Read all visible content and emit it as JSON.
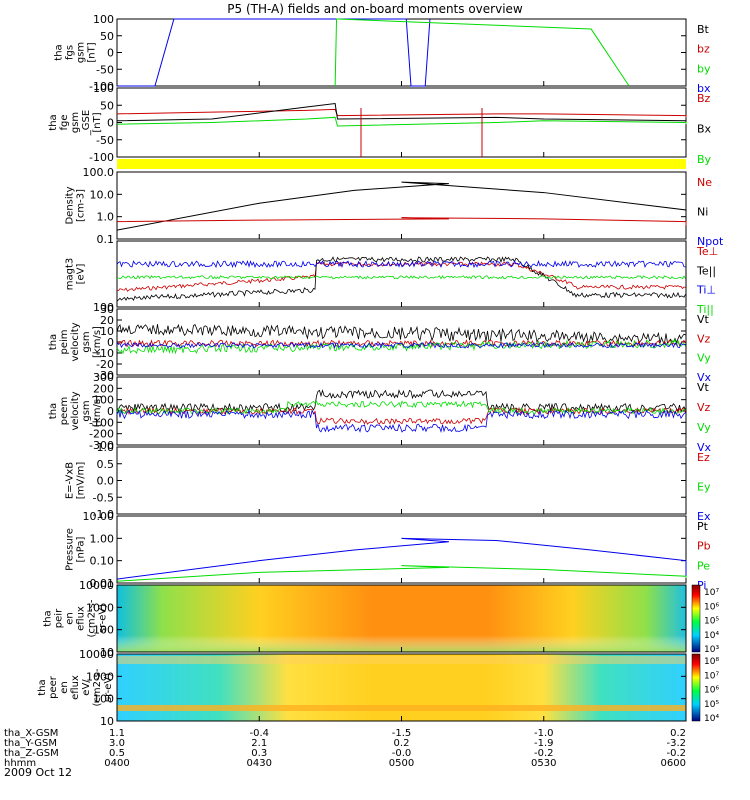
{
  "title": "P5 (TH-A) fields and on-board moments overview",
  "date": "2009 Oct 12",
  "colors": {
    "black": "#000000",
    "red": "#cc0000",
    "green": "#00dd00",
    "blue": "#0000ee",
    "yellow": "#ffff00"
  },
  "chart_data": [
    {
      "type": "line",
      "ylabel": [
        "tha",
        "fgs",
        "gsm",
        "[nT]"
      ],
      "ylim": [
        -100,
        100
      ],
      "yticks": [
        "100",
        "50",
        "0",
        "-50",
        "-100"
      ],
      "legend": [
        {
          "label": "Bt",
          "color": "black"
        },
        {
          "label": "bz",
          "color": "red"
        },
        {
          "label": "by",
          "color": "green"
        },
        {
          "label": "bx",
          "color": "blue"
        }
      ],
      "series": [
        {
          "name": "bx",
          "color": "blue",
          "x": [
            400,
            408,
            412,
            501,
            502,
            505,
            506
          ],
          "y": [
            -100,
            -100,
            100,
            100,
            -100,
            -100,
            100
          ]
        },
        {
          "name": "by",
          "color": "green",
          "x": [
            446,
            446.3,
            446.6,
            540,
            548
          ],
          "y": [
            -100,
            100,
            100,
            70,
            -100
          ]
        }
      ]
    },
    {
      "type": "line",
      "ylabel": [
        "tha",
        "fge",
        "gsm",
        "_GSE",
        "[nT]"
      ],
      "ylim": [
        -100,
        100
      ],
      "yticks": [
        "100",
        "50",
        "0",
        "-50",
        "-100"
      ],
      "legend": [
        {
          "label": "Bz",
          "color": "red"
        },
        {
          "label": "Bx",
          "color": "black"
        },
        {
          "label": "By",
          "color": "green"
        }
      ],
      "series": [
        {
          "name": "Bz",
          "color": "red",
          "x": [
            400,
            420,
            440,
            446,
            446.5,
            520,
            530,
            560,
            600
          ],
          "y": [
            25,
            30,
            35,
            38,
            20,
            25,
            25,
            20,
            15
          ]
        },
        {
          "name": "Bx",
          "color": "black",
          "x": [
            400,
            420,
            440,
            446,
            446.5,
            520,
            530,
            560,
            600
          ],
          "y": [
            5,
            10,
            45,
            55,
            10,
            15,
            10,
            5,
            0
          ]
        },
        {
          "name": "By",
          "color": "green",
          "x": [
            400,
            420,
            440,
            446,
            446.5,
            520,
            530,
            560,
            600
          ],
          "y": [
            -5,
            0,
            10,
            15,
            -10,
            0,
            5,
            0,
            -5
          ]
        }
      ]
    },
    {
      "type": "line",
      "ylabel": [
        "Density",
        "[cm-3]"
      ],
      "yscale": "log",
      "ylim": [
        0.1,
        100
      ],
      "yticks": [
        "100.0",
        "10.0",
        "1.0",
        "0.1"
      ],
      "legend": [
        {
          "label": "Ne",
          "color": "red"
        },
        {
          "label": "Ni",
          "color": "black"
        },
        {
          "label": "Npot",
          "color": "blue"
        }
      ],
      "series": [
        {
          "name": "Ni",
          "color": "black",
          "x": [
            400,
            430,
            450,
            470,
            500,
            530,
            560,
            600
          ],
          "y": [
            0.25,
            4,
            15,
            30,
            35,
            12,
            2,
            0.1
          ]
        },
        {
          "name": "Ne",
          "color": "red",
          "x": [
            400,
            430,
            470,
            500,
            530,
            560,
            600
          ],
          "y": [
            0.6,
            0.7,
            0.8,
            0.9,
            0.8,
            0.6,
            0.4
          ]
        }
      ]
    },
    {
      "type": "line",
      "ylabel": [
        "magt3",
        "[eV]"
      ],
      "yscale": "log",
      "ylim": [
        100,
        10000
      ],
      "yticks": [
        "100"
      ],
      "legend": [
        {
          "label": "Te⊥",
          "color": "red"
        },
        {
          "label": "Te||",
          "color": "black"
        },
        {
          "label": "Ti⊥",
          "color": "blue"
        },
        {
          "label": "Ti||",
          "color": "green"
        }
      ]
    },
    {
      "type": "line",
      "ylabel": [
        "tha",
        "peim",
        "velocity",
        "gsm",
        "[km/s]"
      ],
      "ylim": [
        -30,
        30
      ],
      "yticks": [
        "30",
        "20",
        "10",
        "0",
        "-10",
        "-20",
        "-30"
      ],
      "legend": [
        {
          "label": "Vt",
          "color": "black"
        },
        {
          "label": "Vz",
          "color": "red"
        },
        {
          "label": "Vy",
          "color": "green"
        },
        {
          "label": "Vx",
          "color": "blue"
        }
      ]
    },
    {
      "type": "line",
      "ylabel": [
        "tha",
        "peem",
        "velocity",
        "gsm",
        "[km/s]"
      ],
      "ylim": [
        -300,
        300
      ],
      "yticks": [
        "300",
        "200",
        "100",
        "0",
        "-100",
        "-200",
        "-300"
      ],
      "legend": [
        {
          "label": "Vt",
          "color": "black"
        },
        {
          "label": "Vz",
          "color": "red"
        },
        {
          "label": "Vy",
          "color": "green"
        },
        {
          "label": "Vx",
          "color": "blue"
        }
      ]
    },
    {
      "type": "line",
      "ylabel": [
        "E=-VxB",
        "[mV/m]"
      ],
      "ylim": [
        -1,
        1
      ],
      "yticks": [
        "1.0",
        "0.5",
        "0.0",
        "-0.5",
        "-1.0"
      ],
      "legend": [
        {
          "label": "Ez",
          "color": "red"
        },
        {
          "label": "Ey",
          "color": "green"
        },
        {
          "label": "Ex",
          "color": "blue"
        }
      ]
    },
    {
      "type": "line",
      "ylabel": [
        "Pressure",
        "[nPa]"
      ],
      "yscale": "log",
      "ylim": [
        0.01,
        10
      ],
      "yticks": [
        "10.00",
        "1.00",
        "0.10",
        "0.01"
      ],
      "legend": [
        {
          "label": "Pt",
          "color": "black"
        },
        {
          "label": "Pb",
          "color": "red"
        },
        {
          "label": "Pe",
          "color": "green"
        },
        {
          "label": "Pi",
          "color": "blue"
        }
      ],
      "series": [
        {
          "name": "Pi",
          "color": "blue",
          "x": [
            400,
            430,
            450,
            470,
            500,
            520,
            540,
            560,
            600
          ],
          "y": [
            0.015,
            0.1,
            0.3,
            0.7,
            1.0,
            0.8,
            0.3,
            0.1,
            0.01
          ]
        },
        {
          "name": "Pe",
          "color": "green",
          "x": [
            400,
            430,
            470,
            500,
            530,
            560,
            600
          ],
          "y": [
            0.012,
            0.03,
            0.05,
            0.06,
            0.04,
            0.02,
            0.01
          ]
        }
      ]
    },
    {
      "type": "heatmap",
      "ylabel": [
        "tha",
        "peir",
        "en",
        "eflux",
        "(cm2-s-",
        "sr-eV)"
      ],
      "yticks": [
        "10000",
        "1000",
        "100",
        "10"
      ],
      "colorbar_ticks": [
        "10⁷",
        "10⁶",
        "10⁵",
        "10⁴",
        "10³"
      ]
    },
    {
      "type": "heatmap",
      "ylabel": [
        "tha",
        "peer",
        "en",
        "eflux",
        "eV/",
        "(cm2-s-",
        "sr-eV)"
      ],
      "yticks": [
        "10000",
        "1000",
        "100",
        "10"
      ],
      "colorbar_ticks": [
        "10⁸",
        "10⁷",
        "10⁶",
        "10⁵",
        "10⁴"
      ]
    }
  ],
  "axis_labels": [
    "tha_X-GSM",
    "tha_Y-GSM",
    "tha_Z-GSM",
    "hhmm"
  ],
  "axis_columns": [
    [
      "1.1",
      "3.0",
      "0.5",
      "0400"
    ],
    [
      "-0.4",
      "2.1",
      "0.3",
      "0430"
    ],
    [
      "-1.5",
      "0.2",
      "-0.0",
      "0500"
    ],
    [
      "-1.0",
      "-1.9",
      "-0.2",
      "0530"
    ],
    [
      "0.2",
      "-3.2",
      "-0.2",
      "0600"
    ]
  ]
}
